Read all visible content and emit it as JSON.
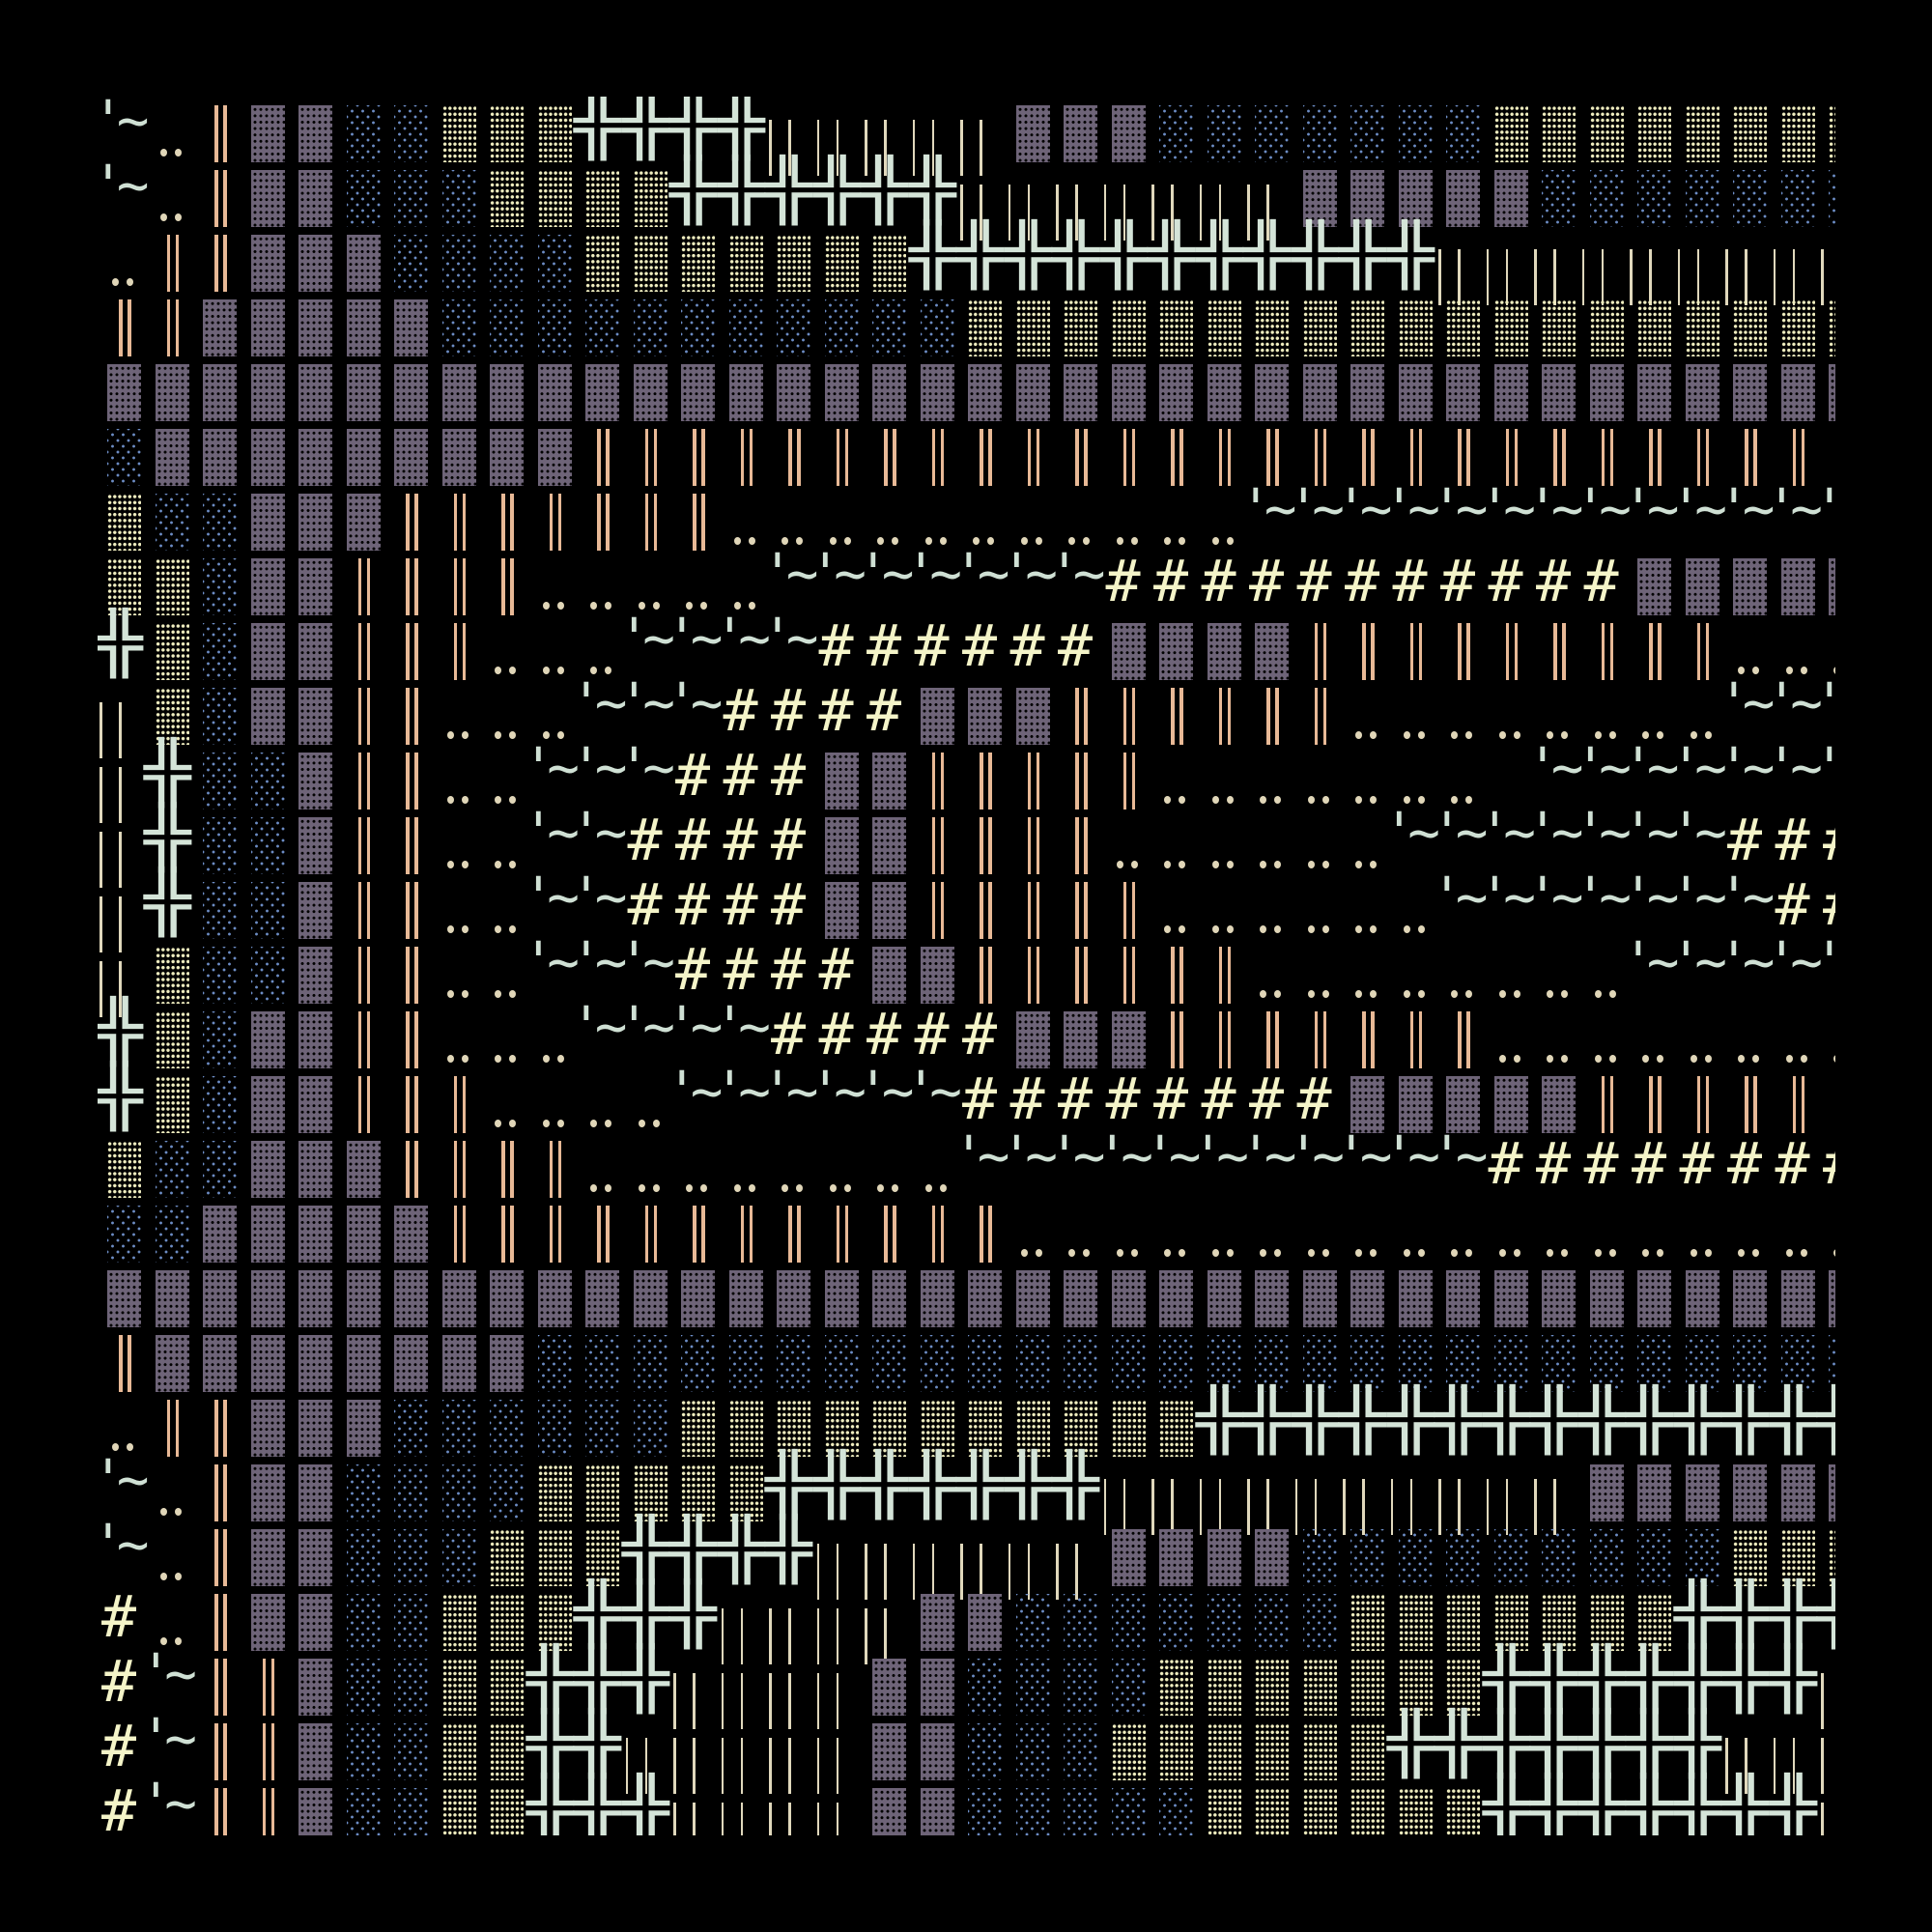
{
  "background": "#000000",
  "glyphs": {
    "M": {
      "char": "▓",
      "color": "#6e6478",
      "name": "shade-dark"
    },
    "B": {
      "char": "░",
      "color": "#6c8cc4",
      "name": "shade-light"
    },
    "Y": {
      "char": "▒",
      "color": "#f0eec0",
      "name": "shade-medium"
    },
    "P": {
      "char": "‖",
      "color": "#e8b996",
      "name": "double-bar"
    },
    "L": {
      "char": "|",
      "color": "#e0d8bc",
      "name": "bar"
    },
    "X": {
      "char": "╬",
      "color": "#d4e4d8",
      "name": "box-cross"
    },
    "#": {
      "char": "#",
      "color": "#f4f4c8",
      "name": "hash"
    },
    "t": {
      "char": "'~",
      "color": "#cfe0d4",
      "name": "tilde"
    },
    "d": {
      "char": "..",
      "color": "#e0d6b8",
      "name": "dots"
    }
  },
  "rows": [
    "tdPMMBBYYYXXXXLLLLLMMMBBBBBBBYYYYYYYY",
    "tdPMMBBBYYYYXXXXXXLLLLLLLMMMMMBBBBBBB",
    "dPPMMMBBBBYYYYYYYXXXXXXXXXXXLLLLLLLLL",
    "PPMMMMMBBBBBBBBBBBYYYYYYYYYYYYYYYYYYY",
    "MMMMMMMMMMMMMMMMMMMMMMMMMMMMMMMMMMMMM",
    "BMMMMMMMMMPPPPPPPPPPPPPPPPPPPPPPPPPP ",
    "YBBMMMPPPPPPPdddddddddddttttttttttttt",
    "YYBMMPPPPdddddttttttt###########MMMMM",
    "XYBMMPPPdddtttt######MMMMPPPPPPPPPddd",
    "LYBMMPPdddttt####MMMPPPPPPddddddddttt",
    "LXBBMPPddttt###MMPPPPPddddddditttttttt",
    "LXBBMPPddtt####MMPPPPddddddttttttt###",
    "LXBBMPPddtt####MMPPPPPddddddttttttt##",
    "LYBBMPPddttt####MMPPPPPPddddddddttttt",
    "XYBMMPPdddtttt#####MMMPPPPPPPdddddddd",
    "XYBMMPPPddddtttttt########MMMMMPPPPP ",
    "YBBMMMPPPPddddddddttttttttttt########",
    "BBMMMMMPPPPPPPPPPPPdddddddddddddddddd",
    "MMMMMMMMMMMMMMMMMMMMMMMMMMMMMMMMMMMMM",
    "PMMMMMMMMBBBBBBBBBBBBBBBBBBBBBBBBBBBB",
    "dPPMMMBBBBBBYYYYYYYYYYYXXXXXXXXXXXXXX",
    "tdPMMBBBBYYYYYXXXXXXXLLLLLLLLLLMMMMMM",
    "tdPMMBBBYYYXXXXLLLLLLMMMMBBBBBBBBBYYY",
    "#dPMMBBYYYXXXLLLLMMBBBBBBBYYYYYYYXXXX",
    "#tPPMBBYYXXXLLLLMMBBBBYYYYYYYXXXXXXXL",
    "#tPPMBBYYXXLLLLLMMBBBYYYYYYXXXXXXXLLL",
    "#tPPMBBYYXXXLLLLMMBBBBBYYYYYYXXXXXXXL"
  ]
}
